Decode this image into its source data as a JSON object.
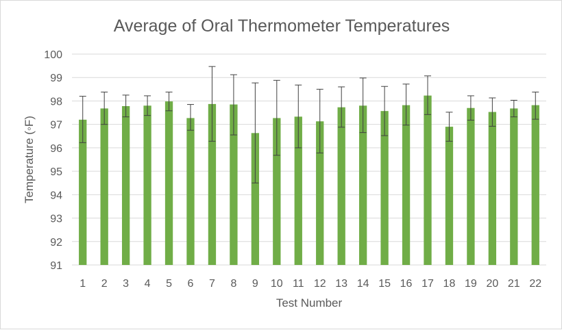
{
  "chart_data": {
    "type": "bar",
    "title": "Average of Oral Thermometer Temperatures",
    "xlabel": "Test Number",
    "ylabel": "Temperature (◦F)",
    "ylim": [
      91,
      100
    ],
    "yticks": [
      91,
      92,
      93,
      94,
      95,
      96,
      97,
      98,
      99,
      100
    ],
    "grid": true,
    "legend": "none",
    "bar_color": "#70AD47",
    "errorbar_color": "#404040",
    "categories": [
      "1",
      "2",
      "3",
      "4",
      "5",
      "6",
      "7",
      "8",
      "9",
      "10",
      "11",
      "12",
      "13",
      "14",
      "15",
      "16",
      "17",
      "18",
      "19",
      "20",
      "21",
      "22"
    ],
    "values": [
      97.2,
      97.68,
      97.78,
      97.8,
      97.98,
      97.27,
      97.87,
      97.85,
      96.63,
      97.27,
      97.33,
      97.13,
      97.73,
      97.8,
      97.57,
      97.82,
      98.23,
      96.9,
      97.7,
      97.53,
      97.68,
      97.82
    ],
    "error_low": [
      96.22,
      97.0,
      97.32,
      97.38,
      97.58,
      96.75,
      96.28,
      96.55,
      94.5,
      95.68,
      96.0,
      95.78,
      96.88,
      96.65,
      96.52,
      96.97,
      97.42,
      96.28,
      97.18,
      96.92,
      97.32,
      97.22
    ],
    "error_high": [
      98.2,
      98.38,
      98.25,
      98.22,
      98.38,
      97.85,
      99.47,
      99.12,
      98.77,
      98.88,
      98.68,
      98.5,
      98.6,
      98.98,
      98.62,
      98.72,
      99.07,
      97.52,
      98.22,
      98.13,
      98.03,
      98.38
    ]
  }
}
